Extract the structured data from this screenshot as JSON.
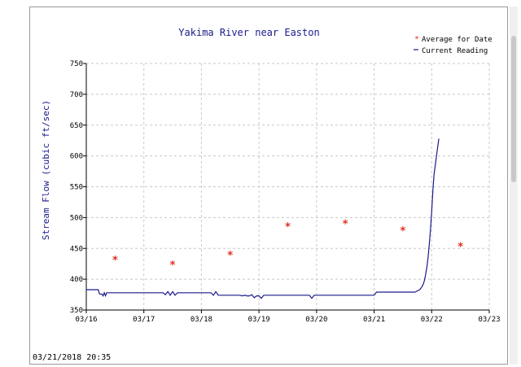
{
  "timestamp": "03/21/2018 20:35",
  "chart_data": {
    "type": "line",
    "title": "Yakima River near Easton",
    "ylabel": "Stream Flow (cubic ft/sec)",
    "xlabel": "",
    "ylim": [
      350,
      750
    ],
    "yticks": [
      350,
      400,
      450,
      500,
      550,
      600,
      650,
      700,
      750
    ],
    "xticks": [
      "03/16",
      "03/17",
      "03/18",
      "03/19",
      "03/20",
      "03/21",
      "03/22",
      "03/23"
    ],
    "xlim": [
      "03/16",
      "03/23"
    ],
    "grid": true,
    "legend_position": "top-right",
    "colors": {
      "average": "#e03020",
      "current": "#1a1a8c",
      "title": "#1a1a8c",
      "grid": "#c8c8c8"
    },
    "series": [
      {
        "name": "Average for Date",
        "kind": "marker",
        "x": [
          "03/16 12:00",
          "03/17 12:00",
          "03/18 12:00",
          "03/19 12:00",
          "03/20 12:00",
          "03/21 12:00",
          "03/22 12:00"
        ],
        "values": [
          433,
          425,
          441,
          487,
          492,
          481,
          455
        ]
      },
      {
        "name": "Current Reading",
        "kind": "line",
        "x": [
          "03/16 00:00",
          "03/16 05:00",
          "03/16 05:30",
          "03/16 06:30",
          "03/16 07:00",
          "03/16 07:30",
          "03/16 08:00",
          "03/16 08:30",
          "03/16 09:00",
          "03/17 08:00",
          "03/17 09:00",
          "03/17 10:00",
          "03/17 11:00",
          "03/17 12:00",
          "03/17 13:00",
          "03/17 14:00",
          "03/17 15:00",
          "03/18 04:00",
          "03/18 05:00",
          "03/18 06:00",
          "03/18 07:00",
          "03/18 08:00",
          "03/18 16:00",
          "03/18 17:00",
          "03/18 18:00",
          "03/18 19:00",
          "03/18 20:00",
          "03/18 21:00",
          "03/18 22:00",
          "03/18 23:00",
          "03/19 00:00",
          "03/19 01:00",
          "03/19 02:00",
          "03/19 03:00",
          "03/19 04:00",
          "03/19 05:00",
          "03/19 10:00",
          "03/19 21:00",
          "03/19 22:00",
          "03/19 23:00",
          "03/20 00:00",
          "03/21 00:00",
          "03/21 01:00",
          "03/21 12:00",
          "03/21 14:00",
          "03/21 16:00",
          "03/21 17:00",
          "03/21 18:00",
          "03/21 19:00",
          "03/21 20:00",
          "03/21 20:30",
          "03/21 21:00",
          "03/21 21:30",
          "03/21 22:00",
          "03/21 22:30",
          "03/21 23:00",
          "03/21 23:30",
          "03/22 00:00",
          "03/22 00:30",
          "03/22 01:00",
          "03/22 01:30",
          "03/22 02:00",
          "03/22 02:30",
          "03/22 03:00"
        ],
        "values": [
          383,
          383,
          376,
          376,
          373,
          378,
          373,
          378,
          378,
          378,
          375,
          380,
          374,
          380,
          374,
          378,
          378,
          378,
          374,
          380,
          374,
          374,
          374,
          373,
          374,
          373,
          373,
          375,
          370,
          373,
          373,
          369,
          374,
          374,
          374,
          374,
          374,
          374,
          369,
          374,
          374,
          374,
          379,
          379,
          379,
          379,
          379,
          381,
          383,
          388,
          392,
          398,
          408,
          420,
          436,
          456,
          480,
          510,
          545,
          570,
          585,
          600,
          615,
          628
        ]
      }
    ]
  }
}
